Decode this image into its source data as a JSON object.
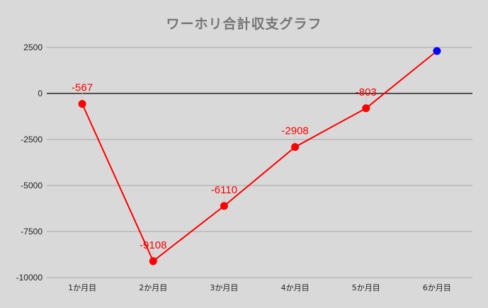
{
  "chart_data": {
    "type": "line",
    "title": "ワーホリ合計収支グラフ",
    "xlabel": "",
    "ylabel": "",
    "categories": [
      "1か月目",
      "2か月目",
      "3か月目",
      "4か月目",
      "5か月目",
      "6か月目"
    ],
    "series": [
      {
        "name": "合計収支",
        "values": [
          -567,
          -9108,
          -6110,
          -2908,
          -803,
          2308
        ],
        "data_labels": [
          "-567",
          "-9108",
          "-6110",
          "-2908",
          "-803",
          ""
        ],
        "line_color": "#ff0000",
        "point_colors": [
          "#ff0000",
          "#ff0000",
          "#ff0000",
          "#ff0000",
          "#ff0000",
          "#0000ff"
        ]
      }
    ],
    "ylim": [
      -10000,
      2500
    ],
    "yticks": [
      2500,
      0,
      -2500,
      -5000,
      -7500,
      -10000
    ],
    "ytick_labels": [
      "2500",
      "0",
      "-2500",
      "-5000",
      "-7500",
      "-10000"
    ],
    "grid": true,
    "legend": "none"
  },
  "colors": {
    "background": "#d9d9d9",
    "gridline": "#a6a6a6",
    "zero_line": "#000000",
    "title": "#757575"
  }
}
